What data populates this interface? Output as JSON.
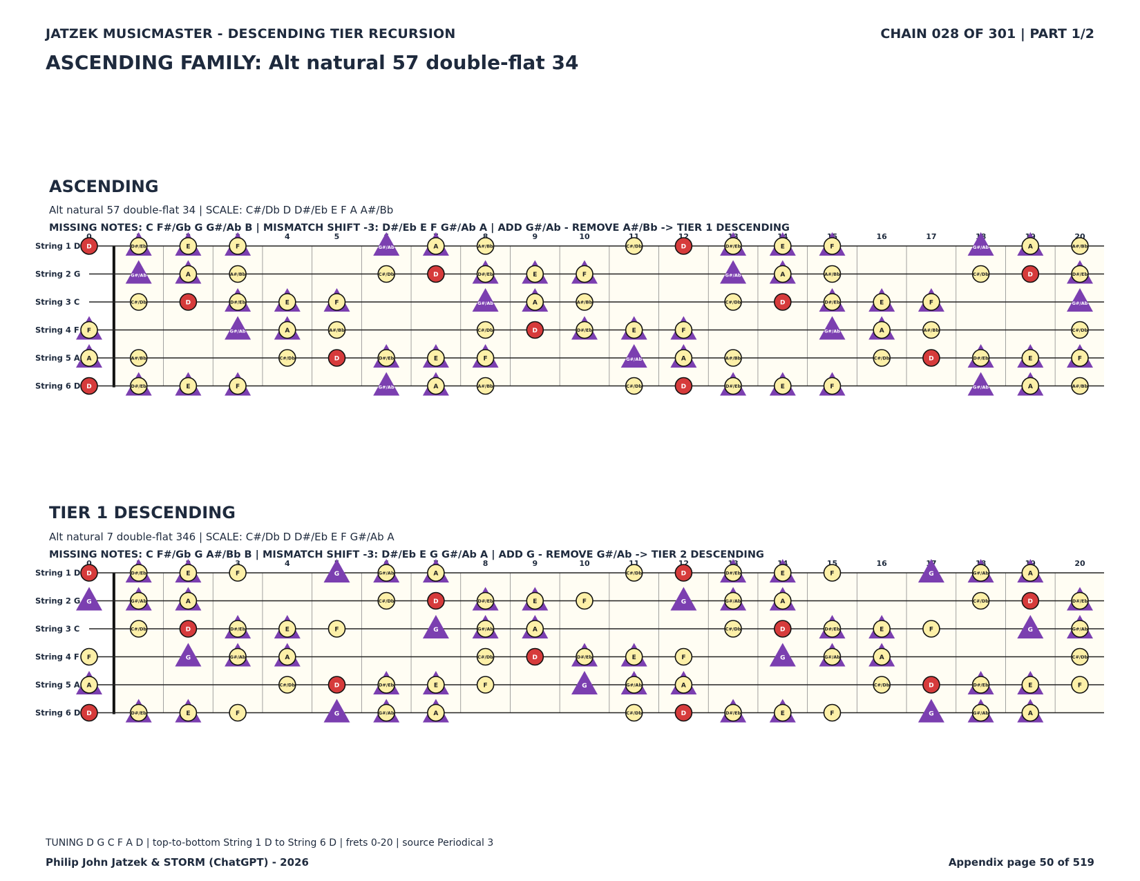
{
  "header": {
    "left": "JATZEK MUSICMASTER - DESCENDING TIER RECURSION",
    "right": "CHAIN 028 OF 301  |  PART 1/2",
    "title": "ASCENDING FAMILY: Alt natural 57 double-flat 34"
  },
  "colors": {
    "root": "#d63b3b",
    "note": "#fdf0a8",
    "triangle": "#7b3fb0",
    "board": "#fffdf3",
    "text": "#1e2a3d"
  },
  "fretboard": {
    "frets": [
      "0",
      "1",
      "2",
      "3",
      "4",
      "5",
      "6",
      "7",
      "8",
      "9",
      "10",
      "11",
      "12",
      "13",
      "14",
      "15",
      "16",
      "17",
      "18",
      "19",
      "20"
    ],
    "strings": [
      "String 1 D",
      "String 2 G",
      "String 3 C",
      "String 4 F",
      "String 5 A",
      "String 6 D"
    ],
    "open_notes": [
      "D",
      "G",
      "C",
      "F",
      "A",
      "D"
    ]
  },
  "sections": [
    {
      "title": "ASCENDING",
      "scale_line": "Alt natural 57 double-flat 34  |  SCALE: C#/Db D D#/Eb E F A A#/Bb",
      "missing_line": "MISSING NOTES: C F#/Gb G G#/Ab B  |  MISMATCH SHIFT -3: D#/Eb E F G#/Ab A  |  ADD G#/Ab - REMOVE A#/Bb -> TIER 1 DESCENDING",
      "scale": [
        "C#/Db",
        "D",
        "D#/Eb",
        "E",
        "F",
        "A",
        "A#/Bb"
      ],
      "triangle_notes": [
        "D#/Eb",
        "E",
        "F",
        "G#/Ab",
        "A"
      ]
    },
    {
      "title": "TIER 1 DESCENDING",
      "scale_line": "Alt natural 7 double-flat 346  |  SCALE: C#/Db D D#/Eb E F G#/Ab A",
      "missing_line": "MISSING NOTES: C F#/Gb G A#/Bb B  |  MISMATCH SHIFT -3: D#/Eb E G G#/Ab A  |  ADD G - REMOVE G#/Ab -> TIER 2 DESCENDING",
      "scale": [
        "C#/Db",
        "D",
        "D#/Eb",
        "E",
        "F",
        "G#/Ab",
        "A"
      ],
      "triangle_notes": [
        "D#/Eb",
        "E",
        "G",
        "G#/Ab",
        "A"
      ]
    }
  ],
  "footer": {
    "note": "TUNING D G C F A D | top-to-bottom String 1 D to String 6 D | frets 0-20 | source Periodical 3",
    "author": "Philip John Jatzek & STORM (ChatGPT) - 2026",
    "page": "Appendix page 50 of 519"
  }
}
